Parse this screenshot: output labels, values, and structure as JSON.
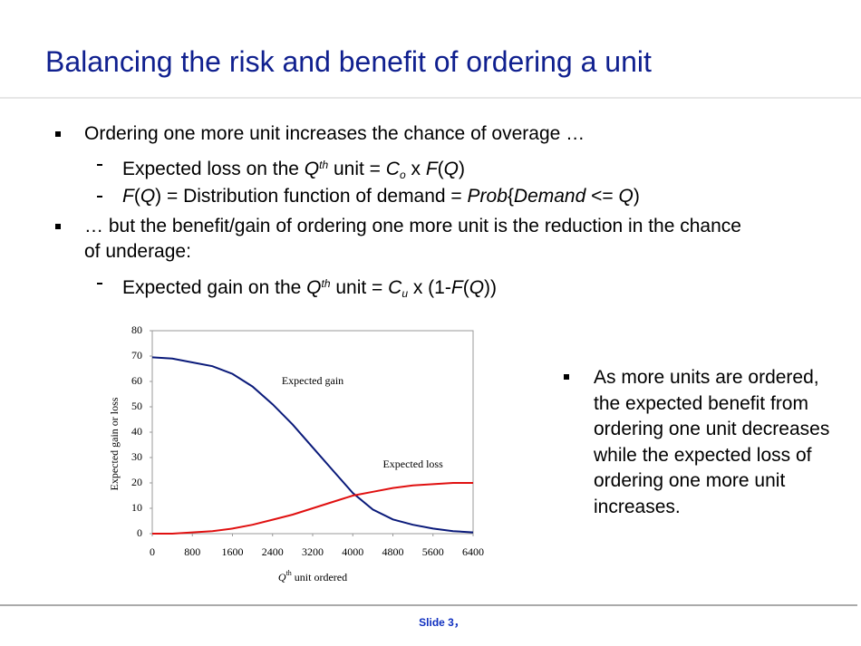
{
  "slide": {
    "title": "Balancing the risk and benefit of ordering a unit",
    "bullets": [
      {
        "level": 1,
        "runs": [
          "Ordering one more unit increases the chance of overage …"
        ]
      },
      {
        "level": 2,
        "runs": [
          "Expected loss on the ",
          {
            "text": "Q",
            "style": "i"
          },
          {
            "text": "th",
            "style": "sup"
          },
          " unit = ",
          {
            "text": "C",
            "style": "i"
          },
          {
            "text": "o",
            "style": "sub"
          },
          " x ",
          {
            "text": "F",
            "style": "i"
          },
          "(",
          {
            "text": "Q",
            "style": "i"
          },
          ")"
        ]
      },
      {
        "level": 2,
        "runs": [
          {
            "text": "F",
            "style": "i"
          },
          "(",
          {
            "text": "Q",
            "style": "i"
          },
          ") = Distribution function of demand = ",
          {
            "text": "Prob",
            "style": "i"
          },
          "{",
          {
            "text": "Demand",
            "style": "i"
          },
          " <= ",
          {
            "text": "Q",
            "style": "i"
          },
          ")"
        ]
      },
      {
        "level": 1,
        "runs": [
          "… but the benefit/gain of ordering one more unit is the reduction in the chance of underage:"
        ]
      },
      {
        "level": 2,
        "runs": [
          "Expected gain on the ",
          {
            "text": "Q",
            "style": "i"
          },
          {
            "text": "th",
            "style": "sup"
          },
          " unit = ",
          {
            "text": "C",
            "style": "i"
          },
          {
            "text": "u",
            "style": "sub"
          },
          " x (1-",
          {
            "text": "F",
            "style": "i"
          },
          "(",
          {
            "text": "Q",
            "style": "i"
          },
          "))"
        ]
      }
    ],
    "note": "As more units are ordered, the expected benefit from ordering one unit decreases while the expected loss of ordering one more unit increases.",
    "footer": "Slide 3，"
  },
  "chart_data": {
    "type": "line",
    "y_label": "Expected gain or loss",
    "x_label": [
      {
        "text": "Q",
        "style": "i"
      },
      {
        "text": "th",
        "style": "sup"
      },
      " unit ordered"
    ],
    "x": [
      0,
      400,
      800,
      1200,
      1600,
      2000,
      2400,
      2800,
      3200,
      3600,
      4000,
      4400,
      4800,
      5200,
      5600,
      6000,
      6400
    ],
    "series": [
      {
        "name": "Expected gain",
        "color": "#0a1a7a",
        "values": [
          69.5,
          69,
          67.5,
          66,
          63,
          58,
          51,
          43,
          34,
          25,
          16,
          9.5,
          5.6,
          3.5,
          2,
          1,
          0.5
        ]
      },
      {
        "name": "Expected loss",
        "color": "#e01010",
        "values": [
          0,
          0,
          0.5,
          1,
          2,
          3.5,
          5.5,
          7.5,
          10,
          12.5,
          15,
          16.5,
          18,
          19,
          19.5,
          20,
          20
        ]
      }
    ],
    "annotations": [
      {
        "text": "Expected gain",
        "x": 3200,
        "y": 60
      },
      {
        "text": "Expected loss",
        "x": 5200,
        "y": 27
      }
    ],
    "xlim": [
      0,
      6400
    ],
    "xticks": [
      0,
      800,
      1600,
      2400,
      3200,
      4000,
      4800,
      5600,
      6400
    ],
    "ylim": [
      0,
      80
    ],
    "yticks": [
      0,
      10,
      20,
      30,
      40,
      50,
      60,
      70,
      80
    ]
  }
}
